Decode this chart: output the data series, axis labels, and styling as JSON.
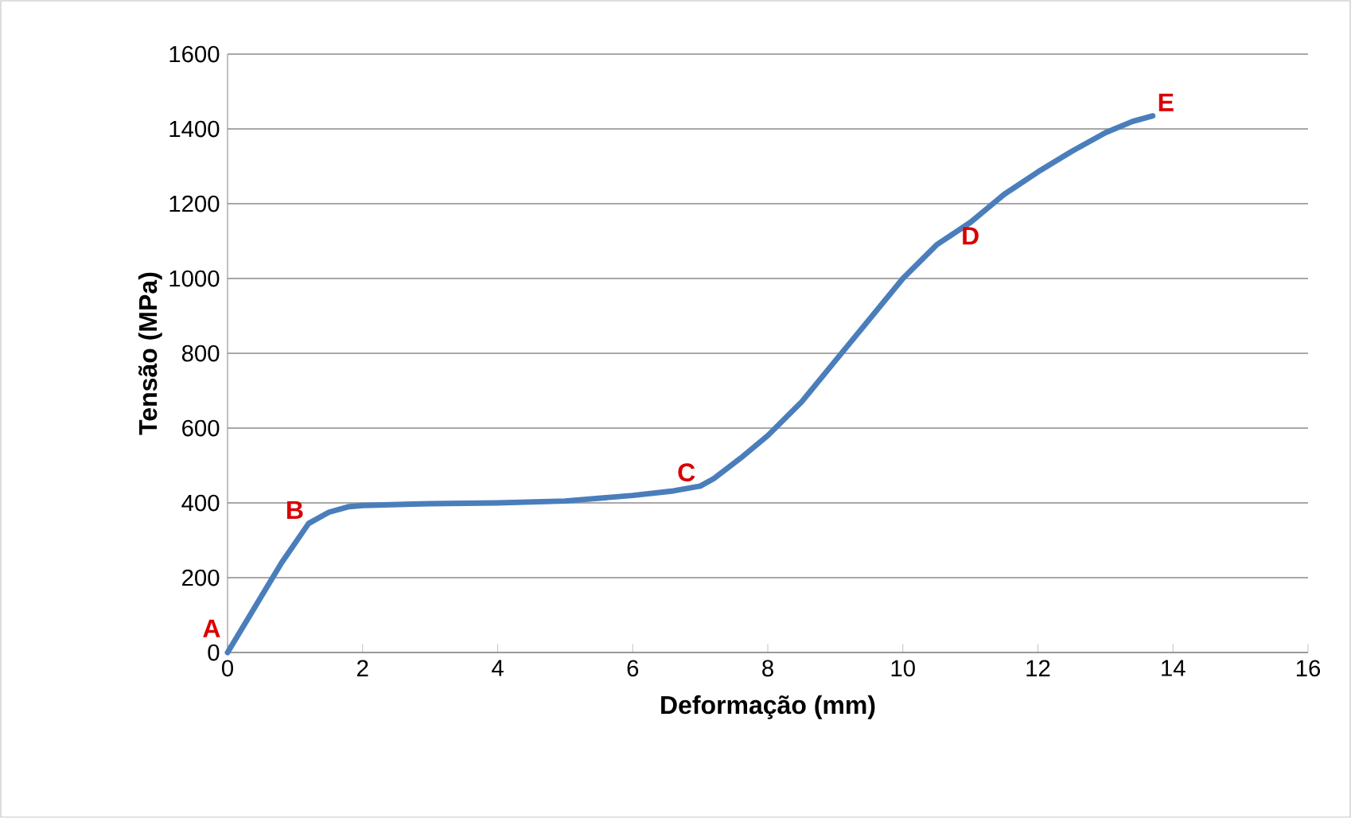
{
  "chart_data": {
    "type": "line",
    "xlabel": "Deformação (mm)",
    "ylabel": "Tensão  (MPa)",
    "series": [
      {
        "color": "#4a7ebb",
        "x": [
          0,
          0.4,
          0.8,
          1.2,
          1.5,
          1.8,
          2,
          3,
          4,
          5,
          6,
          6.6,
          7,
          7.2,
          7.6,
          8,
          8.5,
          9,
          9.5,
          10,
          10.5,
          11,
          11.5,
          12,
          12.5,
          13,
          13.4,
          13.7
        ],
        "values": [
          0,
          120,
          240,
          345,
          375,
          390,
          393,
          398,
          400,
          405,
          420,
          432,
          445,
          465,
          520,
          580,
          670,
          780,
          890,
          1000,
          1090,
          1150,
          1225,
          1285,
          1340,
          1390,
          1420,
          1435
        ]
      }
    ],
    "xlim": [
      0,
      16
    ],
    "xticks": [
      0,
      2,
      4,
      6,
      8,
      10,
      12,
      14,
      16
    ],
    "ylim": [
      0,
      1600
    ],
    "yticks": [
      0,
      200,
      400,
      600,
      800,
      1000,
      1200,
      1400,
      1600
    ],
    "grid": "y",
    "marker": "none",
    "line_style": "solid",
    "annotations": [
      {
        "text": "A",
        "x": 0,
        "y": 0
      },
      {
        "text": "B",
        "x": 1.2,
        "y": 345
      },
      {
        "text": "C",
        "x": 7,
        "y": 445
      },
      {
        "text": "D",
        "x": 11,
        "y": 1150
      },
      {
        "text": "E",
        "x": 13.7,
        "y": 1435
      }
    ]
  }
}
